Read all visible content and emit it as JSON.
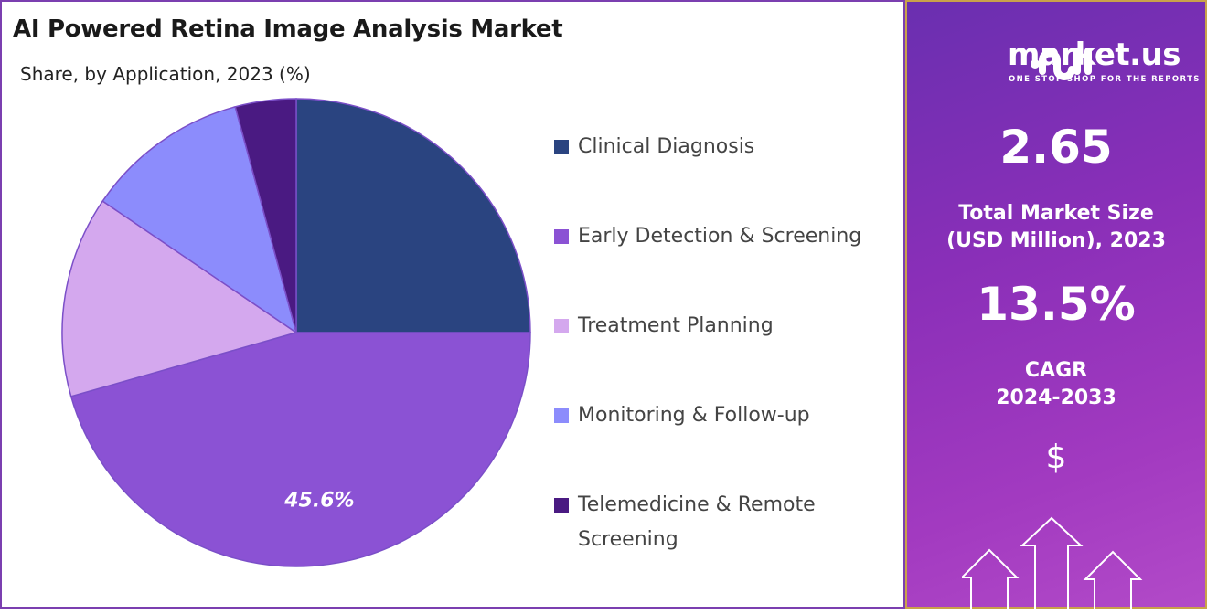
{
  "title": "AI Powered Retina Image Analysis Market",
  "subtitle": "Share, by Application, 2023 (%)",
  "chart_data": {
    "type": "pie",
    "title": "AI Powered Retina Image Analysis Market",
    "subtitle": "Share, by Application, 2023 (%)",
    "start_angle": "top, clockwise",
    "legend_position": "right",
    "categories": [
      "Clinical Diagnosis",
      "Early Detection & Screening",
      "Treatment Planning",
      "Monitoring & Follow-up",
      "Telemedicine & Remote Screening"
    ],
    "values": [
      25.0,
      45.6,
      13.9,
      11.3,
      4.2
    ],
    "colors": [
      "#2a4480",
      "#8b52d4",
      "#d4a8ee",
      "#8c8cfc",
      "#4a1a82"
    ],
    "data_labels": [
      {
        "category": "Early Detection & Screening",
        "text": "45.6%"
      }
    ]
  },
  "legend": [
    {
      "label": "Clinical Diagnosis"
    },
    {
      "label": "Early Detection & Screening"
    },
    {
      "label": "Treatment Planning"
    },
    {
      "label": "Monitoring & Follow-up"
    },
    {
      "label": "Telemedicine & Remote Screening"
    }
  ],
  "side_panel": {
    "logo_text": "market.us",
    "logo_tagline": "ONE STOP SHOP FOR THE REPORTS",
    "market_size": "2.65",
    "market_size_label_1": "Total Market Size",
    "market_size_label_2": "(USD Million), 2023",
    "cagr": "13.5%",
    "cagr_label_1": "CAGR",
    "cagr_label_2": "2024-2033",
    "currency_symbol": "$",
    "dollar_icon": "dollar-icon",
    "arrows_icon": "up-arrows-icon"
  }
}
